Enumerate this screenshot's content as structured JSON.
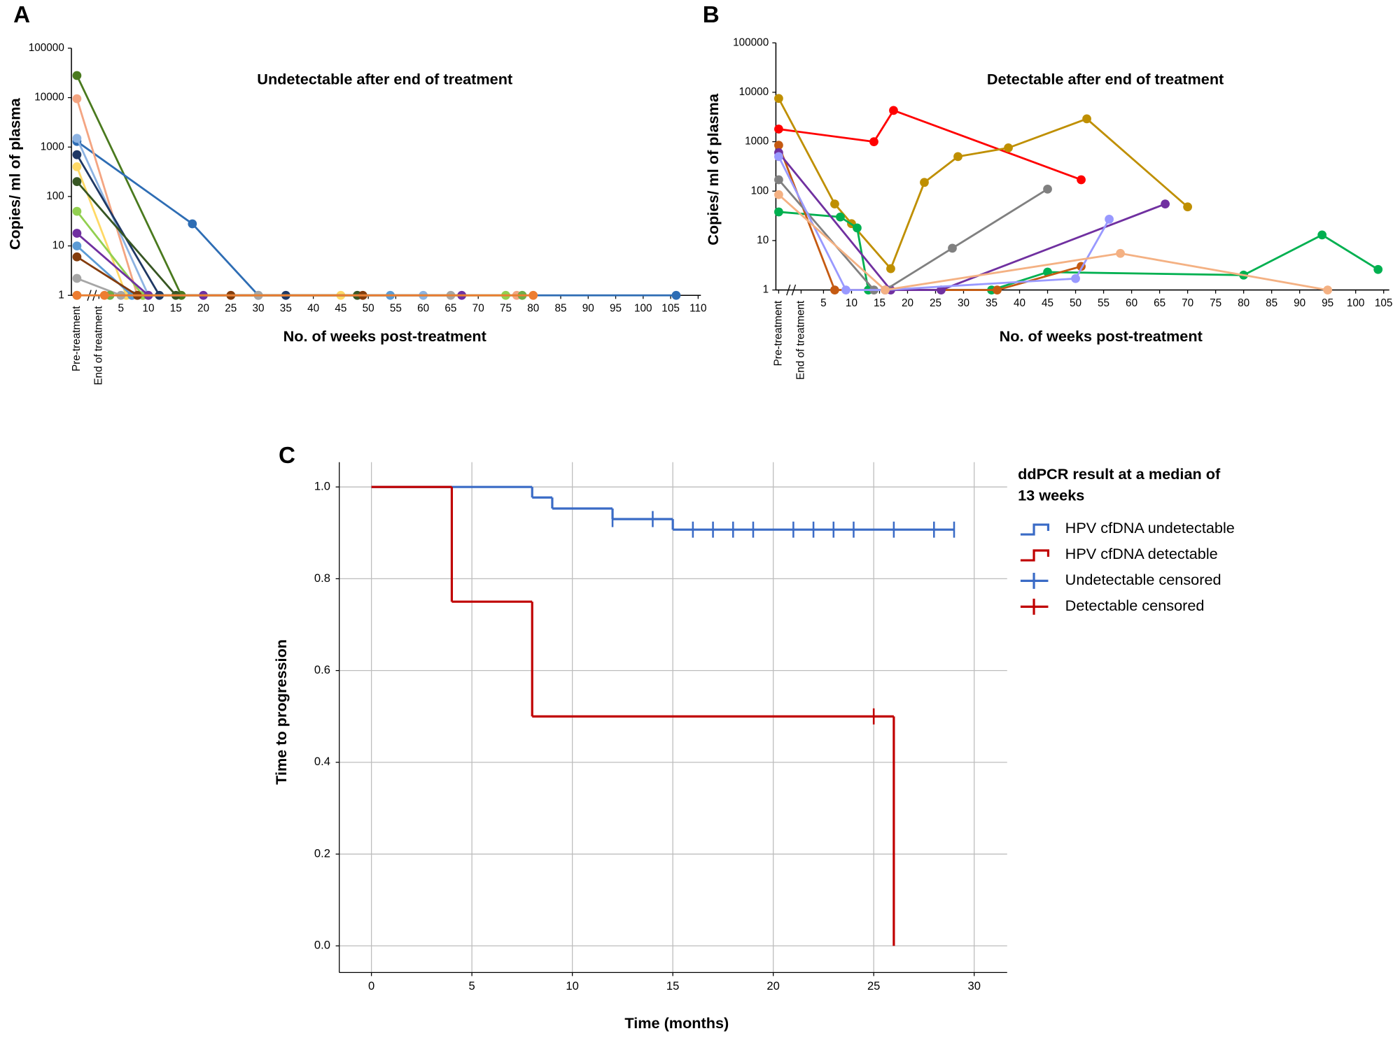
{
  "chart_data": [
    {
      "type": "line",
      "panel_label": "A",
      "title": "Undetectable after end of treatment",
      "x_label": "No. of weeks post-treatment",
      "y_label": "Copies/ ml of plasma",
      "yscale": "log",
      "xlim": [
        -4,
        110.5
      ],
      "ylim": [
        1,
        100000
      ],
      "xticks": [
        {
          "value": -3,
          "label": "Pre-treatment"
        },
        {
          "value": 1,
          "label": "End of treatment"
        },
        5,
        10,
        15,
        20,
        25,
        30,
        35,
        40,
        45,
        50,
        55,
        60,
        65,
        70,
        75,
        80,
        85,
        90,
        95,
        100,
        105,
        110
      ],
      "yticks": [
        1,
        10,
        100,
        1000,
        10000,
        100000
      ],
      "series": [
        {
          "color": "#4a7a1e",
          "x": [
            -3,
            16
          ],
          "values": [
            28000,
            1
          ]
        },
        {
          "color": "#2e6db4",
          "x": [
            -3,
            18,
            30,
            106
          ],
          "values": [
            1300,
            28,
            1,
            1
          ]
        },
        {
          "color": "#f4a582",
          "x": [
            -3,
            8,
            77
          ],
          "values": [
            9500,
            1,
            1
          ]
        },
        {
          "color": "#8db3e2",
          "x": [
            -3,
            10,
            60
          ],
          "values": [
            1500,
            1,
            1
          ]
        },
        {
          "color": "#1f3864",
          "x": [
            -3,
            12,
            35
          ],
          "values": [
            700,
            1,
            1
          ]
        },
        {
          "color": "#ffd966",
          "x": [
            -3,
            6,
            45
          ],
          "values": [
            400,
            1,
            1
          ]
        },
        {
          "color": "#375623",
          "x": [
            -3,
            15,
            48
          ],
          "values": [
            200,
            1,
            1
          ]
        },
        {
          "color": "#92d050",
          "x": [
            -3,
            9,
            75
          ],
          "values": [
            50,
            1,
            1
          ]
        },
        {
          "color": "#7030a0",
          "x": [
            -3,
            10,
            20,
            67
          ],
          "values": [
            18,
            1,
            1,
            1
          ]
        },
        {
          "color": "#5b9bd5",
          "x": [
            -3,
            7,
            54
          ],
          "values": [
            10,
            1,
            1
          ]
        },
        {
          "color": "#843c0c",
          "x": [
            -3,
            8,
            25,
            49
          ],
          "values": [
            6,
            1,
            1,
            1
          ]
        },
        {
          "color": "#a6a6a6",
          "x": [
            -3,
            5,
            30,
            65
          ],
          "values": [
            2.2,
            1,
            1,
            1
          ]
        },
        {
          "color": "#70ad47",
          "x": [
            -3,
            3,
            78
          ],
          "values": [
            1,
            1,
            1
          ]
        },
        {
          "color": "#ed7d31",
          "x": [
            -3,
            2,
            80
          ],
          "values": [
            1,
            1,
            1
          ]
        }
      ]
    },
    {
      "type": "line",
      "panel_label": "B",
      "title": "Detectable after end of treatment",
      "x_label": "No. of weeks post-treatment",
      "y_label": "Copies/ ml of plasma",
      "yscale": "log",
      "xlim": [
        -3.5,
        106
      ],
      "ylim": [
        1,
        100000
      ],
      "xticks": [
        {
          "value": -3,
          "label": "Pre-treatment"
        },
        {
          "value": 1,
          "label": "End of treatment"
        },
        5,
        10,
        15,
        20,
        25,
        30,
        35,
        40,
        45,
        50,
        55,
        60,
        65,
        70,
        75,
        80,
        85,
        90,
        95,
        100,
        105
      ],
      "yticks": [
        1,
        10,
        100,
        1000,
        10000,
        100000
      ],
      "series": [
        {
          "color": "#ff0000",
          "x": [
            -3,
            14,
            17.5,
            51
          ],
          "values": [
            1800,
            1000,
            4300,
            170
          ]
        },
        {
          "color": "#bf8f00",
          "x": [
            -3,
            7,
            10,
            17,
            23,
            29,
            38,
            52,
            70
          ],
          "values": [
            7500,
            55,
            22,
            2.7,
            150,
            500,
            750,
            2900,
            48
          ]
        },
        {
          "color": "#00b050",
          "x": [
            -3,
            8,
            11,
            13,
            35,
            45,
            80,
            94,
            104
          ],
          "values": [
            38,
            30,
            18,
            1,
            1,
            2.3,
            2,
            13,
            2.6
          ]
        },
        {
          "color": "#c55a11",
          "x": [
            -3,
            7,
            36,
            51
          ],
          "values": [
            850,
            1,
            1,
            3
          ]
        },
        {
          "color": "#7030a0",
          "x": [
            -3,
            17,
            26,
            66
          ],
          "values": [
            600,
            1,
            1,
            55
          ]
        },
        {
          "color": "#808080",
          "x": [
            -3,
            14,
            16,
            28,
            45
          ],
          "values": [
            170,
            1,
            1,
            7,
            110
          ]
        },
        {
          "color": "#9999ff",
          "x": [
            -3,
            9,
            16,
            50,
            56
          ],
          "values": [
            500,
            1,
            1,
            1.7,
            27
          ]
        },
        {
          "color": "#f4b183",
          "x": [
            -3,
            16,
            58,
            95
          ],
          "values": [
            85,
            1,
            5.5,
            1
          ]
        }
      ]
    },
    {
      "type": "survival",
      "panel_label": "C",
      "x_label": "Time (months)",
      "y_label": "Time to progression",
      "legend_title": "ddPCR result at a median of 13 weeks",
      "grid": true,
      "xlim": [
        -1.6,
        31.64
      ],
      "ylim": [
        -0.058,
        1.054
      ],
      "xticks": [
        0,
        5,
        10,
        15,
        20,
        25,
        30
      ],
      "yticks": [
        {
          "value": 0,
          "label": "0.0"
        },
        0.2,
        0.4,
        0.6,
        0.8,
        {
          "value": 1,
          "label": "1.0"
        }
      ],
      "series": [
        {
          "name": "HPV cfDNA undetectable",
          "color": "#3a6bc6",
          "style": "step",
          "x": [
            0,
            8,
            9,
            12,
            15,
            29
          ],
          "values": [
            1,
            0.977,
            0.953,
            0.93,
            0.907,
            0.907
          ]
        },
        {
          "name": "HPV cfDNA detectable",
          "color": "#c00000",
          "style": "step",
          "x": [
            0,
            4,
            8,
            26
          ],
          "values": [
            1,
            0.75,
            0.5,
            0
          ]
        },
        {
          "name": "Undetectable censored",
          "color": "#3a6bc6",
          "style": "censored",
          "x": [
            12,
            14,
            16,
            17,
            18,
            19,
            21,
            22,
            23,
            24,
            26,
            28,
            29
          ],
          "values": [
            0.93,
            0.93,
            0.907,
            0.907,
            0.907,
            0.907,
            0.907,
            0.907,
            0.907,
            0.907,
            0.907,
            0.907,
            0.907
          ]
        },
        {
          "name": "Detectable censored",
          "color": "#c00000",
          "style": "censored",
          "x": [
            25
          ],
          "values": [
            0.5
          ]
        }
      ]
    }
  ]
}
